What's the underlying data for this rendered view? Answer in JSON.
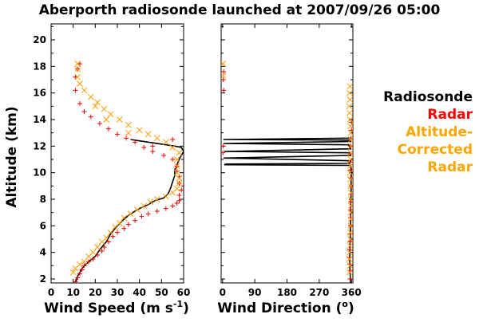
{
  "chart_data": {
    "type": "scatter",
    "title": "Aberporth radiosonde launched at 2007/09/26 05:00",
    "ylabel": "Altitude (km)",
    "ylim": [
      1.7,
      21.2
    ],
    "yticks": [
      2,
      4,
      6,
      8,
      10,
      12,
      14,
      16,
      18,
      20
    ],
    "panels": [
      {
        "id": "speed",
        "xlabel_main": "Wind Speed (m s",
        "xlabel_sup": "-1",
        "xlabel_close": ")",
        "xlim": [
          0,
          60
        ],
        "xticks": [
          0,
          10,
          20,
          30,
          40,
          50,
          60
        ],
        "xticklabels": [
          "0",
          "10",
          "20",
          "30",
          "40",
          "50",
          "60"
        ],
        "series": [
          {
            "name": "Radiosonde",
            "style": "line",
            "color": "#000000",
            "points": [
              [
                11,
                1.7
              ],
              [
                12,
                2.2
              ],
              [
                14,
                2.8
              ],
              [
                17,
                3.3
              ],
              [
                20,
                3.7
              ],
              [
                22,
                4.2
              ],
              [
                25,
                4.8
              ],
              [
                27,
                5.4
              ],
              [
                30,
                6.0
              ],
              [
                33,
                6.5
              ],
              [
                36,
                6.9
              ],
              [
                40,
                7.3
              ],
              [
                44,
                7.6
              ],
              [
                47,
                7.9
              ],
              [
                51,
                8.1
              ],
              [
                53,
                8.4
              ],
              [
                54,
                8.8
              ],
              [
                55,
                9.3
              ],
              [
                56,
                9.8
              ],
              [
                56,
                10.2
              ],
              [
                57,
                10.6
              ],
              [
                58,
                11.0
              ],
              [
                59,
                11.3
              ],
              [
                60,
                11.6
              ],
              [
                59,
                11.9
              ],
              [
                56,
                12.0
              ],
              [
                50,
                12.15
              ],
              [
                44,
                12.3
              ],
              [
                40,
                12.4
              ],
              [
                36,
                12.5
              ]
            ]
          },
          {
            "name": "Radar",
            "style": "plus",
            "color": "#ee0000",
            "points": [
              [
                11,
                1.8
              ],
              [
                12,
                2.1
              ],
              [
                13,
                2.4
              ],
              [
                14,
                2.7
              ],
              [
                15,
                3.0
              ],
              [
                17,
                3.3
              ],
              [
                19,
                3.5
              ],
              [
                21,
                3.8
              ],
              [
                23,
                4.1
              ],
              [
                24,
                4.4
              ],
              [
                26,
                4.8
              ],
              [
                28,
                5.2
              ],
              [
                30,
                5.5
              ],
              [
                33,
                5.8
              ],
              [
                35,
                6.1
              ],
              [
                38,
                6.4
              ],
              [
                41,
                6.7
              ],
              [
                44,
                6.9
              ],
              [
                48,
                7.1
              ],
              [
                52,
                7.3
              ],
              [
                55,
                7.5
              ],
              [
                57,
                7.7
              ],
              [
                58,
                7.9
              ],
              [
                58,
                8.3
              ],
              [
                59,
                8.7
              ],
              [
                58,
                9.2
              ],
              [
                58,
                9.7
              ],
              [
                57,
                10.1
              ],
              [
                57,
                10.5
              ],
              [
                55,
                11.0
              ],
              [
                51,
                11.3
              ],
              [
                46,
                11.6
              ],
              [
                42,
                11.9
              ],
              [
                38,
                12.3
              ],
              [
                34,
                12.6
              ],
              [
                30,
                12.9
              ],
              [
                26,
                13.3
              ],
              [
                22,
                13.7
              ],
              [
                18,
                14.2
              ],
              [
                15,
                14.6
              ],
              [
                13,
                15.2
              ],
              [
                11,
                16.2
              ],
              [
                11,
                17.2
              ],
              [
                12,
                17.8
              ],
              [
                13,
                18.2
              ],
              [
                46,
                12.0
              ],
              [
                55,
                12.5
              ]
            ]
          },
          {
            "name": "Altitude-Corrected Radar",
            "style": "cross",
            "color": "#ff9900",
            "points": [
              [
                10,
                2.5
              ],
              [
                11,
                2.8
              ],
              [
                13,
                3.1
              ],
              [
                15,
                3.3
              ],
              [
                17,
                3.7
              ],
              [
                19,
                4.0
              ],
              [
                21,
                4.4
              ],
              [
                23,
                4.8
              ],
              [
                25,
                5.1
              ],
              [
                27,
                5.5
              ],
              [
                29,
                5.9
              ],
              [
                31,
                6.2
              ],
              [
                33,
                6.6
              ],
              [
                36,
                6.9
              ],
              [
                39,
                7.2
              ],
              [
                42,
                7.5
              ],
              [
                45,
                7.8
              ],
              [
                48,
                8.0
              ],
              [
                52,
                8.2
              ],
              [
                55,
                8.5
              ],
              [
                57,
                8.8
              ],
              [
                58,
                9.2
              ],
              [
                58,
                9.6
              ],
              [
                57,
                10.0
              ],
              [
                57,
                10.5
              ],
              [
                57,
                11.0
              ],
              [
                58,
                11.5
              ],
              [
                55,
                11.9
              ],
              [
                52,
                12.3
              ],
              [
                48,
                12.6
              ],
              [
                44,
                12.9
              ],
              [
                40,
                13.2
              ],
              [
                35,
                13.6
              ],
              [
                31,
                14.0
              ],
              [
                27,
                14.4
              ],
              [
                24,
                14.8
              ],
              [
                21,
                15.3
              ],
              [
                18,
                15.7
              ],
              [
                15,
                16.2
              ],
              [
                13,
                16.7
              ],
              [
                12,
                17.2
              ],
              [
                12,
                17.8
              ],
              [
                12,
                18.2
              ],
              [
                20,
                15.0
              ],
              [
                25,
                14.0
              ],
              [
                35,
                13.0
              ]
            ]
          }
        ]
      },
      {
        "id": "direction",
        "xlabel_main": "Wind Direction (",
        "xlabel_sup": "o",
        "xlabel_close": ")",
        "xlim": [
          -4,
          364
        ],
        "xticks": [
          0,
          90,
          180,
          270,
          360
        ],
        "xticklabels": [
          "0",
          "90",
          "180",
          "270",
          "360"
        ],
        "series": [
          {
            "name": "Radiosonde",
            "style": "line",
            "color": "#000000",
            "points": [
              [
                358,
                1.7
              ],
              [
                356,
                2.5
              ],
              [
                355,
                3.5
              ],
              [
                356,
                4.5
              ],
              [
                357,
                5.5
              ],
              [
                358,
                6.5
              ],
              [
                358,
                7.5
              ],
              [
                359,
                8.5
              ],
              [
                359,
                9.5
              ],
              [
                360,
                10.2
              ],
              [
                358,
                10.55
              ],
              [
                5,
                10.6
              ],
              [
                10,
                10.65
              ],
              [
                355,
                10.7
              ],
              [
                358,
                10.9
              ],
              [
                3,
                11.1
              ],
              [
                358,
                11.3
              ],
              [
                355,
                11.5
              ],
              [
                5,
                11.6
              ],
              [
                358,
                11.8
              ],
              [
                352,
                12.1
              ],
              [
                3,
                12.2
              ],
              [
                358,
                12.35
              ],
              [
                355,
                12.45
              ],
              [
                2,
                12.5
              ],
              [
                358,
                12.6
              ]
            ]
          },
          {
            "name": "Radar",
            "style": "plus",
            "color": "#ee0000",
            "points": [
              [
                356,
                2.0
              ],
              [
                357,
                2.6
              ],
              [
                355,
                3.1
              ],
              [
                354,
                3.6
              ],
              [
                355,
                4.2
              ],
              [
                356,
                4.8
              ],
              [
                356,
                5.4
              ],
              [
                357,
                6.0
              ],
              [
                358,
                6.6
              ],
              [
                358,
                7.2
              ],
              [
                358,
                7.8
              ],
              [
                359,
                8.4
              ],
              [
                359,
                9.0
              ],
              [
                358,
                9.6
              ],
              [
                357,
                10.2
              ],
              [
                356,
                10.8
              ],
              [
                357,
                11.4
              ],
              [
                358,
                12.0
              ],
              [
                359,
                12.6
              ],
              [
                360,
                13.2
              ],
              [
                360,
                13.8
              ],
              [
                1,
                11.5
              ],
              [
                2,
                12.0
              ],
              [
                3,
                16.2
              ],
              [
                2,
                17.0
              ],
              [
                3,
                17.6
              ]
            ]
          },
          {
            "name": "Altitude-Corrected Radar",
            "style": "cross",
            "color": "#ff9900",
            "points": [
              [
                355,
                2.5
              ],
              [
                356,
                3.0
              ],
              [
                354,
                3.5
              ],
              [
                355,
                4.0
              ],
              [
                356,
                4.5
              ],
              [
                357,
                5.0
              ],
              [
                357,
                5.5
              ],
              [
                358,
                6.0
              ],
              [
                358,
                6.5
              ],
              [
                358,
                7.0
              ],
              [
                359,
                7.5
              ],
              [
                359,
                8.0
              ],
              [
                359,
                8.5
              ],
              [
                358,
                9.0
              ],
              [
                357,
                9.5
              ],
              [
                356,
                10.0
              ],
              [
                357,
                10.5
              ],
              [
                358,
                11.0
              ],
              [
                358,
                11.5
              ],
              [
                359,
                12.0
              ],
              [
                359,
                12.5
              ],
              [
                358,
                13.0
              ],
              [
                357,
                13.5
              ],
              [
                356,
                14.0
              ],
              [
                355,
                14.5
              ],
              [
                354,
                15.0
              ],
              [
                356,
                15.5
              ],
              [
                355,
                16.0
              ],
              [
                356,
                16.5
              ],
              [
                1,
                18.2
              ],
              [
                2,
                17.3
              ]
            ]
          }
        ]
      }
    ],
    "legend": {
      "position": "right",
      "entries": [
        {
          "lines": [
            "Radiosonde"
          ],
          "color": "#000000"
        },
        {
          "lines": [
            "Radar"
          ],
          "color": "#ff0000"
        },
        {
          "lines": [
            "Altitude-",
            "Corrected",
            "Radar"
          ],
          "color": "#ffa500"
        }
      ]
    }
  }
}
